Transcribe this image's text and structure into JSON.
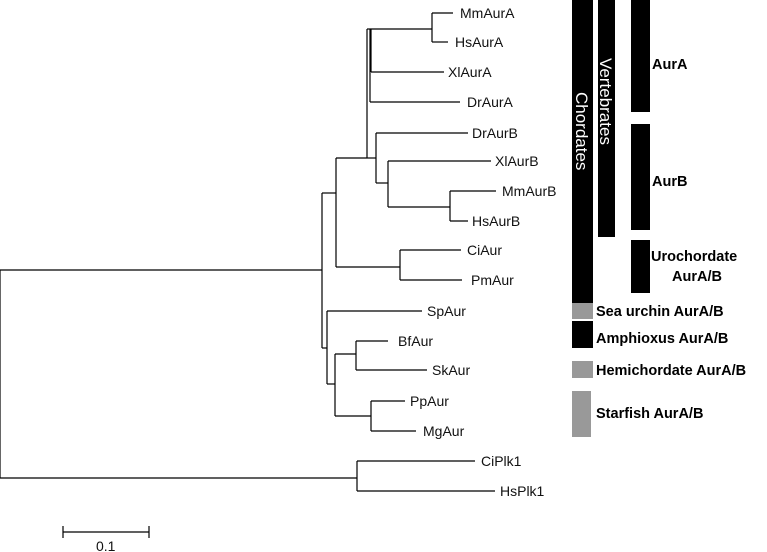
{
  "leaves": {
    "mmaura": "MmAurA",
    "hsaura": "HsAurA",
    "xlaura": "XlAurA",
    "draura": "DrAurA",
    "draurb": "DrAurB",
    "xlaurb": "XlAurB",
    "mmaurb": "MmAurB",
    "hsaurb": "HsAurB",
    "ciaur": "CiAur",
    "pmaur": "PmAur",
    "spaur": "SpAur",
    "bfaur": "BfAur",
    "skaur": "SkAur",
    "ppaur": "PpAur",
    "mgaur": "MgAur",
    "ciplk1": "CiPlk1",
    "hsplk1": "HsPlk1"
  },
  "groups": {
    "chordates": "Chordates",
    "vertebrates": "Vertebrates",
    "aura": "AurA",
    "aurb": "AurB",
    "urochordate_line1": "Urochordate",
    "urochordate_line2": "AurA/B",
    "sea_urchin": "Sea urchin AurA/B",
    "amphioxus": "Amphioxus AurA/B",
    "hemichordate": "Hemichordate AurA/B",
    "starfish": "Starfish AurA/B"
  },
  "scale_bar": {
    "label": "0.1"
  },
  "colors": {
    "black_bar": "#000000",
    "gray_bar": "#999999",
    "branch": "#000000"
  }
}
